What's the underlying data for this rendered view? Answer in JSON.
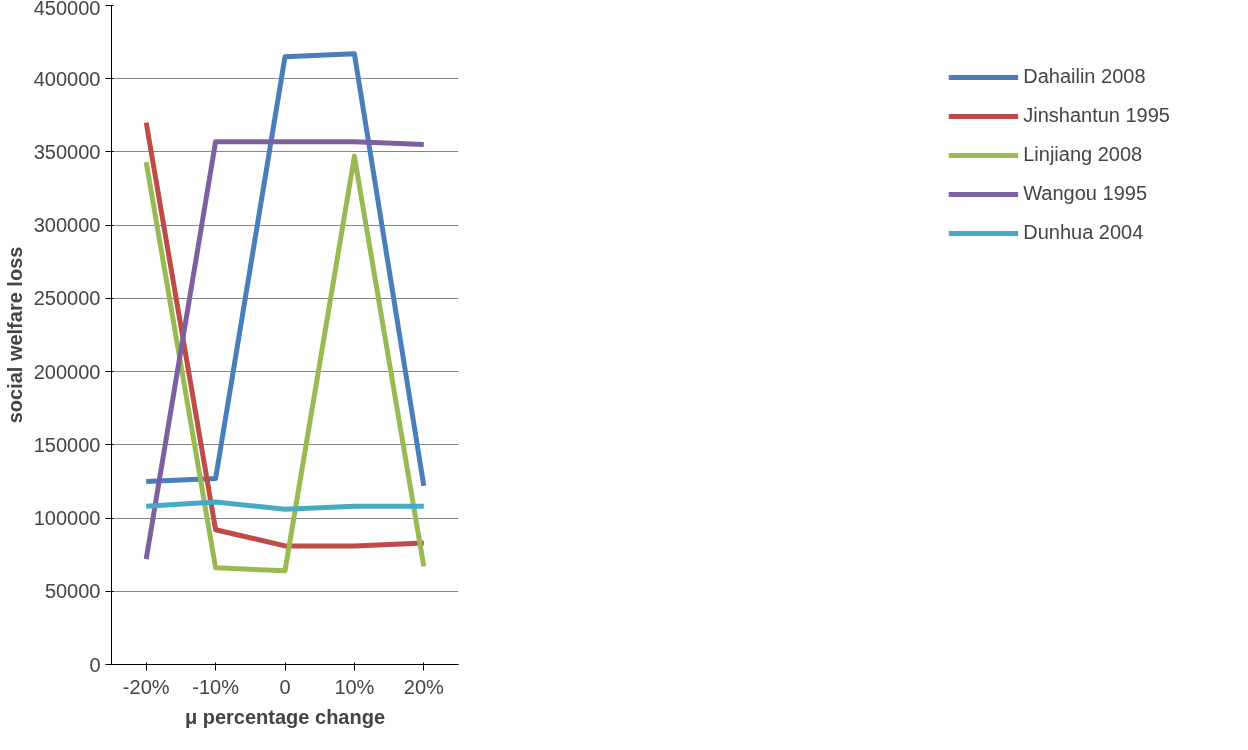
{
  "chart_data": {
    "type": "line",
    "xlabel": "μ percentage change",
    "ylabel": "social welfare loss",
    "categories": [
      "-20%",
      "-10%",
      "0",
      "10%",
      "20%"
    ],
    "ylim": [
      0,
      450000
    ],
    "yticks": [
      0,
      50000,
      100000,
      150000,
      200000,
      250000,
      300000,
      350000,
      400000,
      450000
    ],
    "grid": "y",
    "legend": "right",
    "marker": "none",
    "line_style": "solid",
    "series": [
      {
        "name": "Dahailin 2008",
        "color": "#4a7ebb",
        "values": [
          125000,
          127000,
          415000,
          417000,
          122000
        ]
      },
      {
        "name": "Jinshantun 1995",
        "color": "#be4b48",
        "values": [
          370000,
          92000,
          81000,
          81000,
          83000
        ]
      },
      {
        "name": "Linjiang 2008",
        "color": "#98b954",
        "values": [
          343000,
          66000,
          64000,
          347000,
          67000
        ]
      },
      {
        "name": "Wangou 1995",
        "color": "#7d60a0",
        "values": [
          72000,
          357000,
          357000,
          357000,
          355000
        ]
      },
      {
        "name": "Dunhua 2004",
        "color": "#46aac5",
        "values": [
          108000,
          111000,
          106000,
          108000,
          108000
        ]
      }
    ]
  }
}
